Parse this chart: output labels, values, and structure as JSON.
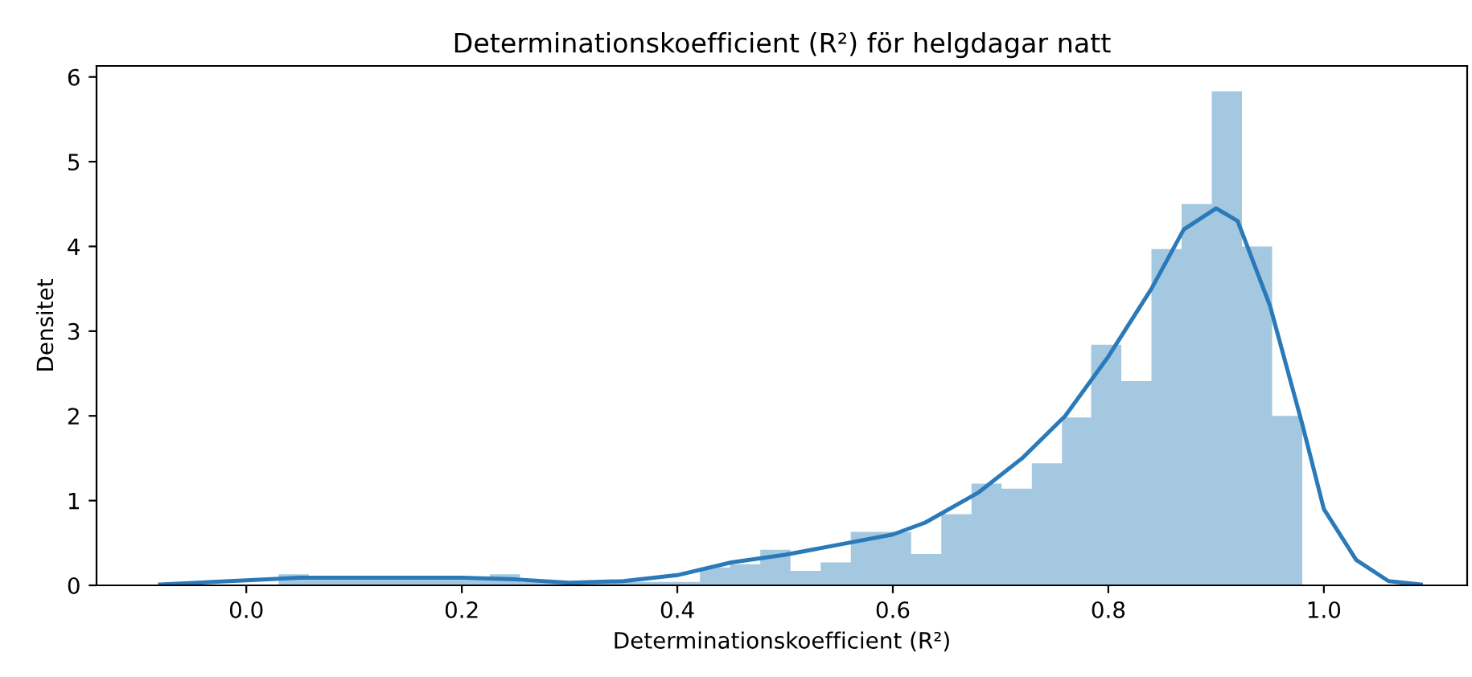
{
  "chart_data": {
    "type": "histogram",
    "title": "Determinationskoefficient (R²) för helgdagar natt",
    "xlabel": "Determinationskoefficient (R²)",
    "ylabel": "Densitet",
    "bins": [
      0.03,
      0.058,
      0.086,
      0.114,
      0.142,
      0.17,
      0.198,
      0.226,
      0.254,
      0.282,
      0.31,
      0.338,
      0.365,
      0.393,
      0.421,
      0.449,
      0.477,
      0.505,
      0.533,
      0.561,
      0.589,
      0.617,
      0.645,
      0.673,
      0.701,
      0.729,
      0.757,
      0.784,
      0.812,
      0.84,
      0.868,
      0.896,
      0.924,
      0.952,
      0.98
    ],
    "series": [
      {
        "color": "#a5c8e1",
        "values": [
          0.13,
          0.08,
          0.08,
          0.08,
          0.08,
          0.08,
          0.08,
          0.13,
          0.04,
          0.04,
          0.04,
          0.04,
          0.04,
          0.04,
          0.21,
          0.25,
          0.42,
          0.17,
          0.27,
          0.63,
          0.63,
          0.37,
          0.84,
          1.2,
          1.14,
          1.44,
          1.98,
          2.84,
          2.41,
          3.97,
          4.5,
          5.83,
          4.0,
          2.0
        ]
      },
      {
        "type": "line",
        "color": "#2a7ab9",
        "x": [
          -0.08,
          0.0,
          0.05,
          0.1,
          0.2,
          0.25,
          0.3,
          0.35,
          0.4,
          0.45,
          0.5,
          0.55,
          0.6,
          0.63,
          0.68,
          0.72,
          0.76,
          0.8,
          0.84,
          0.87,
          0.9,
          0.92,
          0.95,
          0.98,
          1.0,
          1.03,
          1.06,
          1.09
        ],
        "values": [
          0.01,
          0.06,
          0.09,
          0.09,
          0.09,
          0.07,
          0.03,
          0.05,
          0.12,
          0.27,
          0.36,
          0.48,
          0.6,
          0.74,
          1.1,
          1.5,
          2.0,
          2.7,
          3.5,
          4.2,
          4.45,
          4.3,
          3.3,
          1.9,
          0.9,
          0.3,
          0.05,
          0.01
        ]
      }
    ],
    "xlim": [
      -0.139,
      1.133
    ],
    "ylim": [
      0,
      6.13
    ],
    "xticks": [
      {
        "value": 0,
        "label": "0.0"
      },
      {
        "value": 0.2,
        "label": "0.2"
      },
      {
        "value": 0.4,
        "label": "0.4"
      },
      {
        "value": 0.6,
        "label": "0.6"
      },
      {
        "value": 0.8,
        "label": "0.8"
      },
      {
        "value": 1.0,
        "label": "1.0"
      }
    ],
    "yticks": [
      0,
      1,
      2,
      3,
      4,
      5,
      6
    ],
    "grid": false,
    "legend": false
  }
}
